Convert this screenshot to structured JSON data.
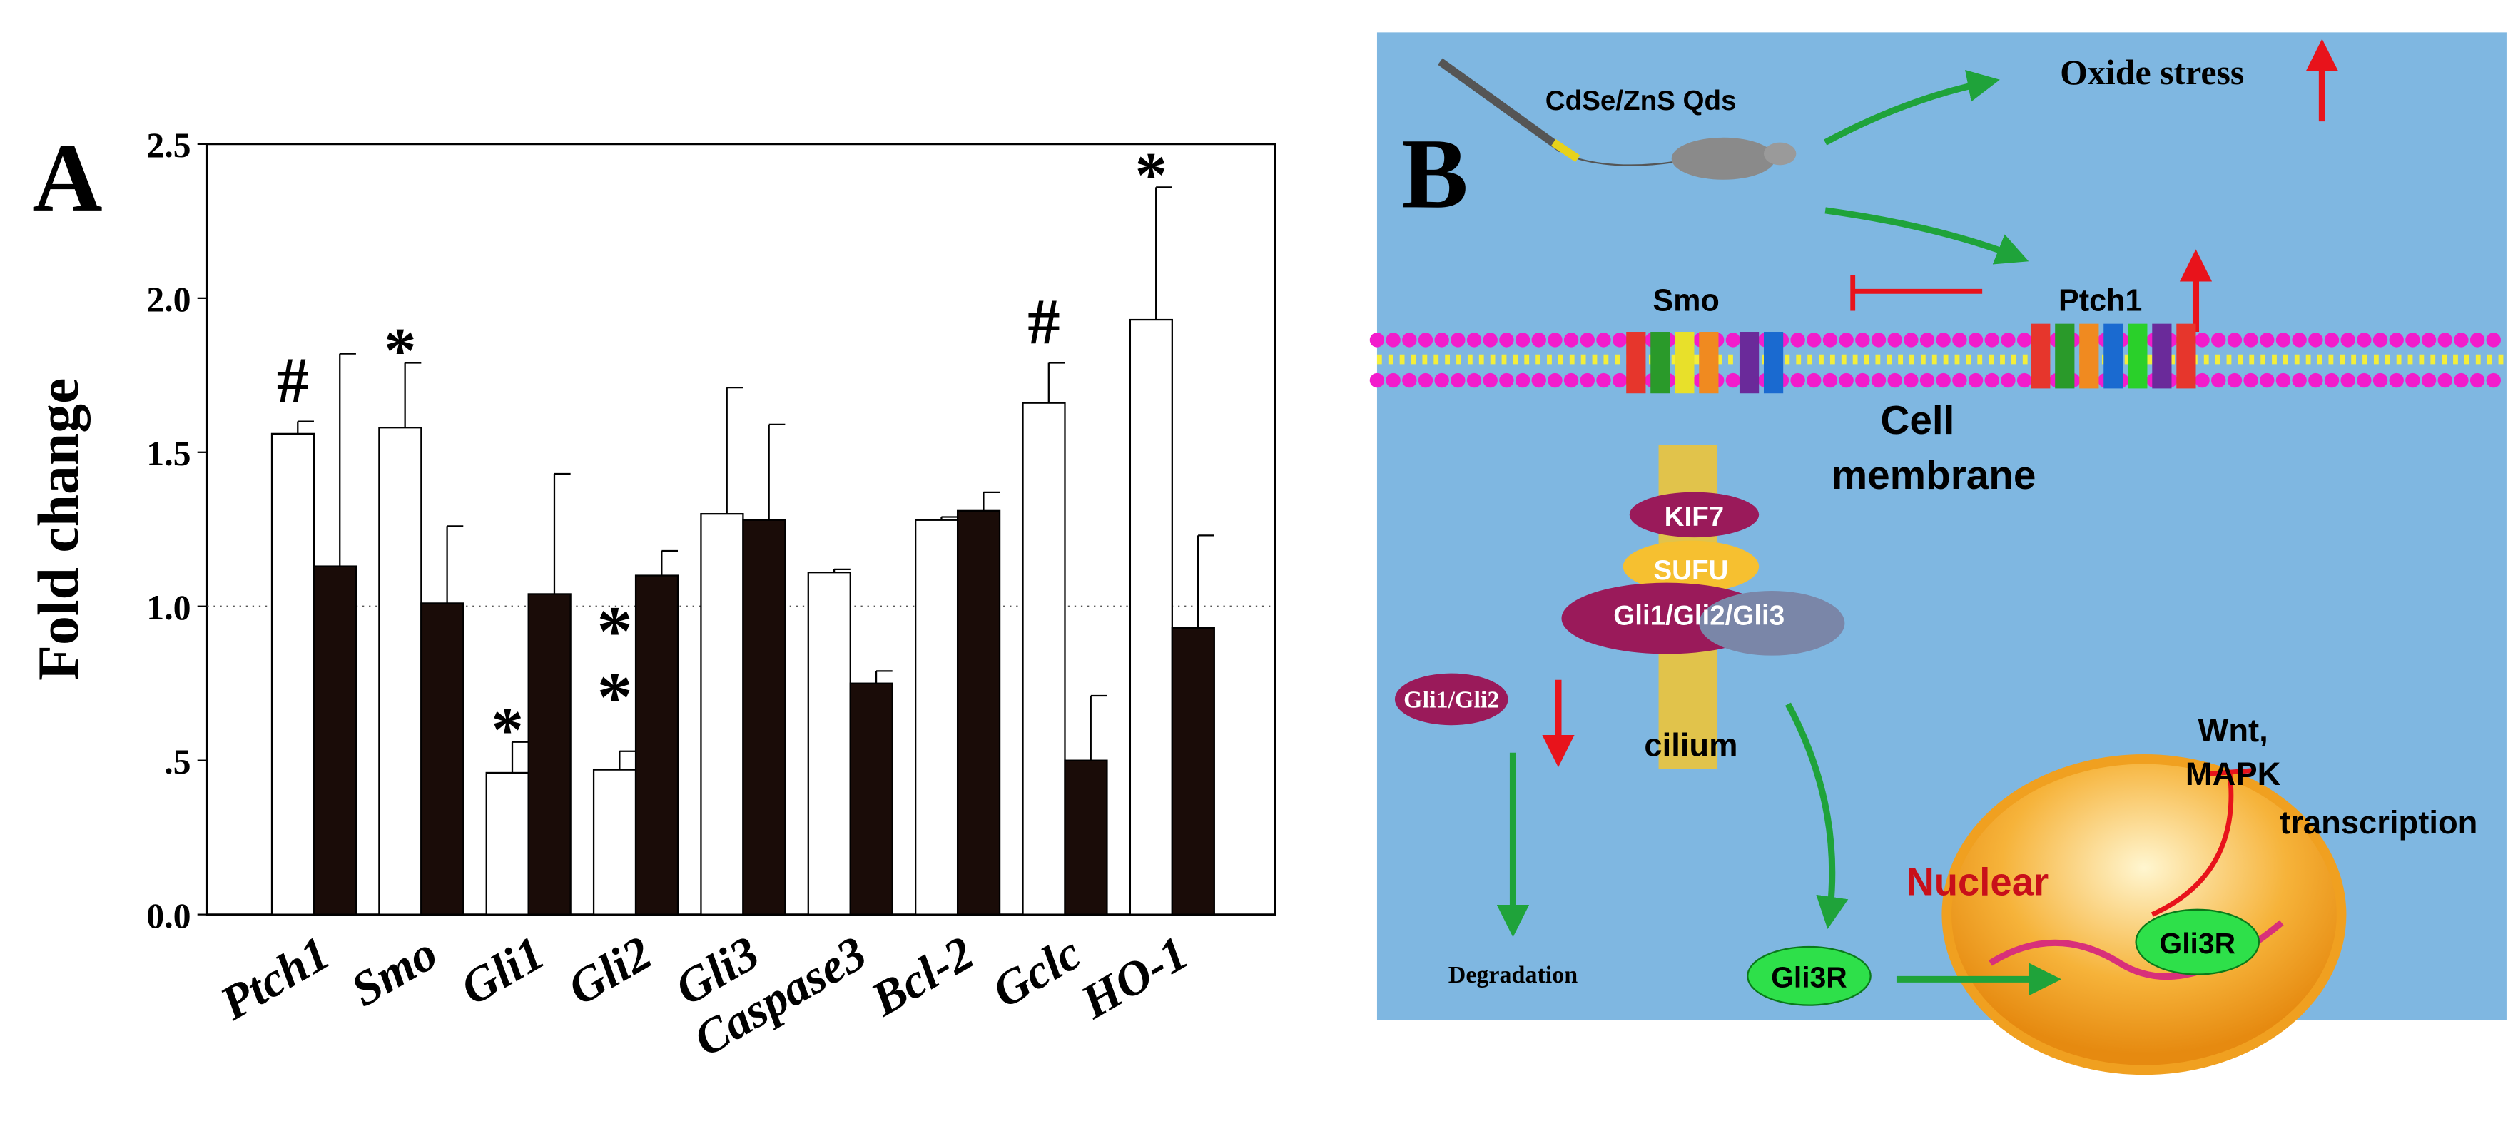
{
  "chart_data": {
    "type": "bar",
    "panel_label": "A",
    "ylabel": "Fold change",
    "categories": [
      "Ptch1",
      "Smo",
      "Gli1",
      "Gli2",
      "Gli3",
      "Caspase3",
      "Bcl-2",
      "Gclc",
      "HO-1"
    ],
    "series": [
      {
        "color": "#ffffff",
        "values": [
          1.56,
          1.58,
          0.46,
          0.47,
          1.3,
          1.11,
          1.28,
          1.66,
          1.93
        ],
        "errors": [
          0.04,
          0.21,
          0.1,
          0.06,
          0.41,
          0.01,
          0.01,
          0.13,
          0.43
        ]
      },
      {
        "color": "#1a0c08",
        "values": [
          1.13,
          1.01,
          1.04,
          1.1,
          1.28,
          0.75,
          1.31,
          0.5,
          0.93
        ],
        "errors": [
          0.69,
          0.25,
          0.39,
          0.08,
          0.31,
          0.04,
          0.06,
          0.21,
          0.3
        ]
      }
    ],
    "markers": [
      "#",
      "*",
      "*",
      "**",
      null,
      null,
      null,
      "#",
      "*"
    ],
    "ylim": [
      0,
      2.5
    ],
    "yticks": [
      {
        "value": 0,
        "label": "0.0"
      },
      {
        "value": 0.5,
        "label": ".5"
      },
      {
        "value": 1,
        "label": "1.0"
      },
      {
        "value": 1.5,
        "label": "1.5"
      },
      {
        "value": 2,
        "label": "2.0"
      },
      {
        "value": 2.5,
        "label": "2.5"
      }
    ],
    "reference_line": 1
  },
  "diagram": {
    "panel_label": "B",
    "injection": "CdSe/ZnS Qds",
    "oxide_stress": "Oxide stress",
    "smo": "Smo",
    "ptch1": "Ptch1",
    "cell_membrane": [
      "Cell",
      "membrane"
    ],
    "kif7": "KIF7",
    "sufu": "SUFU",
    "gli_complex": "Gli1/Gli2/Gli3",
    "gli12": "Gli1/Gli2",
    "cilium": "cilium",
    "pathways": [
      "Wnt,",
      "MAPK"
    ],
    "transcription": "transcription",
    "nuclear": "Nuclear",
    "degradation": "Degradation",
    "gli3r_free": "Gli3R",
    "gli3r_nucleus": "Gli3R"
  }
}
